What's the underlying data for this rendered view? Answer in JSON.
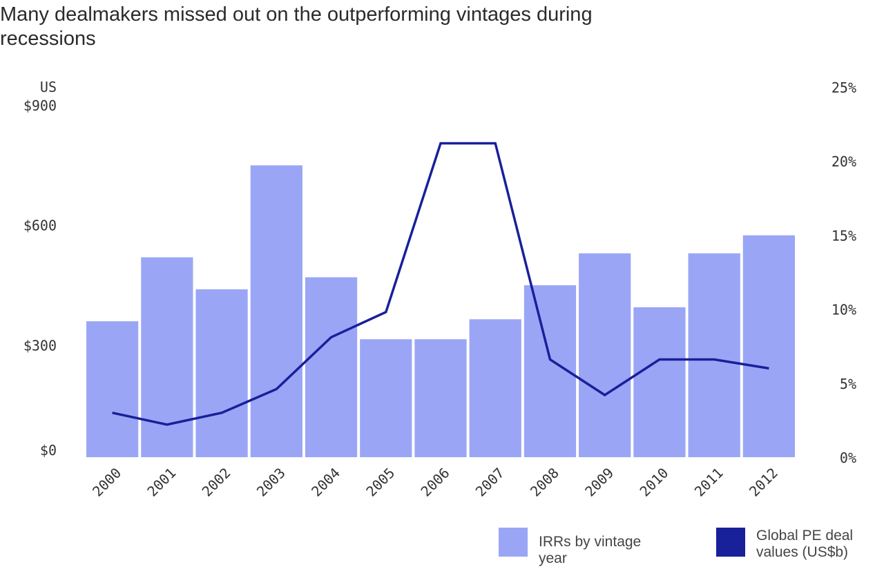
{
  "title": "Many dealmakers missed out on the outperforming vintages during recessions",
  "legend": {
    "bars_label": "IRRs by vintage year",
    "line_label": "Global PE deal values (US$b)"
  },
  "colors": {
    "bars": "#9aa6f5",
    "line": "#18209a",
    "text": "#333333"
  },
  "chart_data": {
    "type": "bar",
    "categories": [
      "2000",
      "2001",
      "2002",
      "2003",
      "2004",
      "2005",
      "2006",
      "2007",
      "2008",
      "2009",
      "2010",
      "2011",
      "2012"
    ],
    "series": [
      {
        "name": "IRRs by vintage year",
        "type": "bar",
        "axis": "left",
        "values": [
          340,
          500,
          420,
          730,
          450,
          295,
          295,
          345,
          430,
          510,
          375,
          510,
          555
        ]
      },
      {
        "name": "Global PE deal values (US$b)",
        "type": "line",
        "axis": "right",
        "values": [
          3.0,
          2.2,
          3.0,
          4.6,
          8.1,
          9.8,
          21.2,
          21.2,
          6.6,
          4.2,
          6.6,
          6.6,
          6.0
        ]
      }
    ],
    "left_axis": {
      "unit_label": "US",
      "ticks": [
        "$0",
        "$300",
        "$600",
        "$900"
      ],
      "ylim": [
        0,
        900
      ]
    },
    "right_axis": {
      "ticks": [
        "0%",
        "5%",
        "10%",
        "15%",
        "20%",
        "25%"
      ],
      "ylim": [
        0,
        25
      ]
    },
    "grid": false,
    "legend_position": "bottom-right"
  }
}
